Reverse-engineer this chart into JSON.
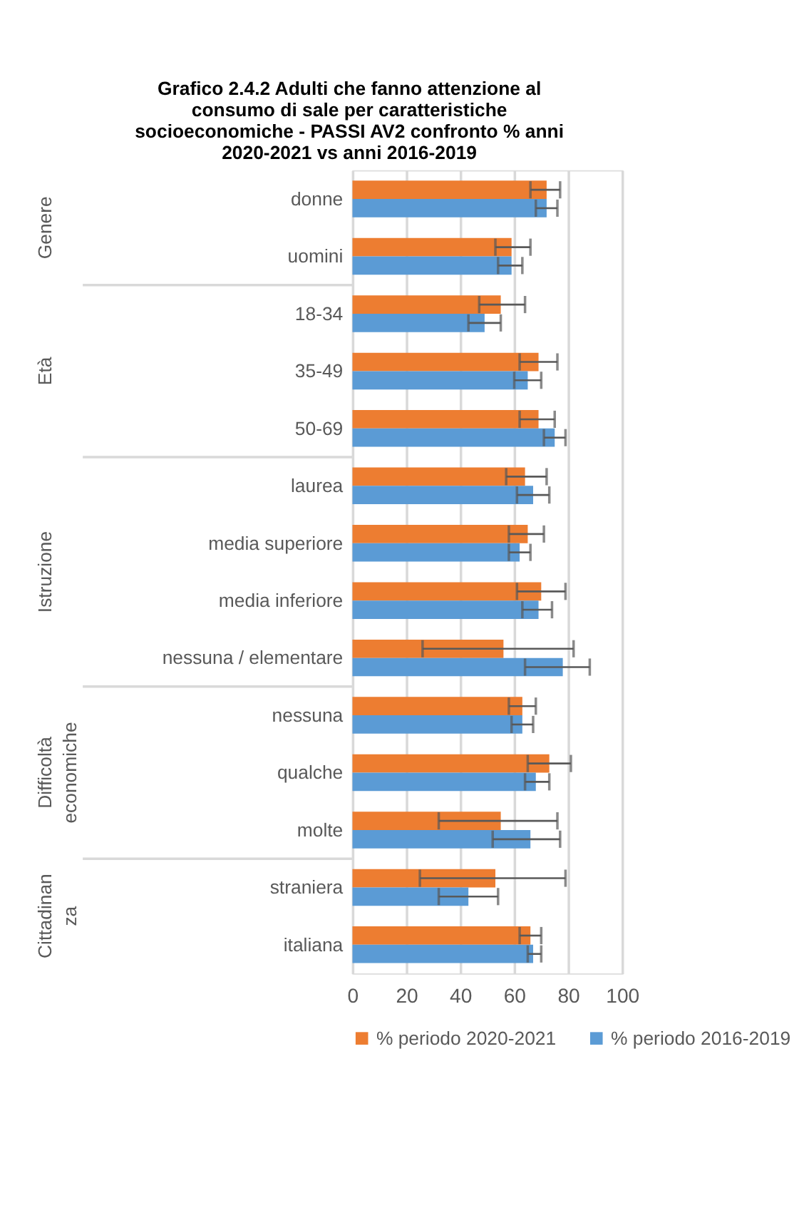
{
  "chart_data": {
    "type": "bar",
    "orientation": "horizontal",
    "title": [
      "Grafico 2.4.2 Adulti che fanno attenzione al",
      "consumo di sale per caratteristiche",
      "socioeconomiche - PASSI AV2 confronto %  anni",
      "2020-2021 vs anni 2016-2019"
    ],
    "categories": [
      "donne",
      "uomini",
      "18-34",
      "35-49",
      "50-69",
      "laurea",
      "media superiore",
      "media inferiore",
      "nessuna / elementare",
      "nessuna",
      "qualche",
      "molte",
      "straniera",
      "italiana"
    ],
    "series": [
      {
        "name": "% periodo  2020-2021",
        "color": "#ed7d31",
        "values": [
          72,
          59,
          55,
          69,
          69,
          64,
          65,
          70,
          56,
          63,
          73,
          55,
          53,
          66
        ],
        "errors": [
          [
            66,
            77
          ],
          [
            53,
            66
          ],
          [
            47,
            64
          ],
          [
            62,
            76
          ],
          [
            62,
            75
          ],
          [
            57,
            72
          ],
          [
            58,
            71
          ],
          [
            61,
            79
          ],
          [
            26,
            82
          ],
          [
            58,
            68
          ],
          [
            65,
            81
          ],
          [
            32,
            76
          ],
          [
            25,
            79
          ],
          [
            62,
            70
          ]
        ]
      },
      {
        "name": "% periodo 2016-2019",
        "color": "#5b9bd5",
        "values": [
          72,
          59,
          49,
          65,
          75,
          67,
          62,
          69,
          78,
          63,
          68,
          66,
          43,
          67
        ],
        "errors": [
          [
            68,
            76
          ],
          [
            54,
            63
          ],
          [
            43,
            55
          ],
          [
            60,
            70
          ],
          [
            71,
            79
          ],
          [
            61,
            73
          ],
          [
            58,
            66
          ],
          [
            63,
            74
          ],
          [
            64,
            88
          ],
          [
            59,
            67
          ],
          [
            64,
            73
          ],
          [
            52,
            77
          ],
          [
            32,
            54
          ],
          [
            65,
            70
          ]
        ]
      }
    ],
    "annotations": [
      "Genere",
      "Età",
      "Istruzione",
      "Difficoltà\neconomiche",
      "Cittadinan\nza"
    ],
    "xlim": [
      0,
      100
    ],
    "xticks": [
      0,
      20,
      40,
      60,
      80,
      100
    ],
    "grid": "x",
    "legend": "bottom"
  }
}
